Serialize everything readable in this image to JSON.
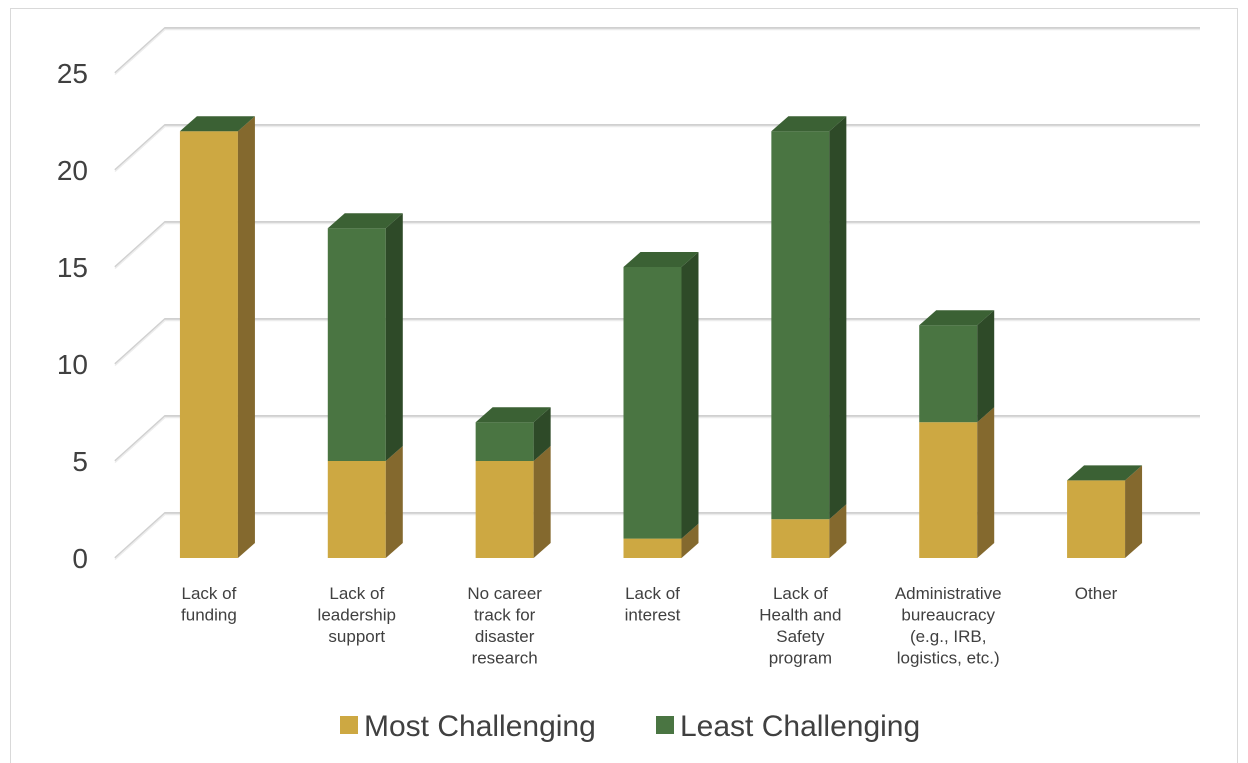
{
  "chart_data": {
    "type": "bar",
    "stacked": true,
    "three_d": true,
    "categories": [
      [
        "Lack of",
        "funding"
      ],
      [
        "Lack of",
        "leadership",
        "support"
      ],
      [
        "No career",
        "track for",
        "disaster",
        "research"
      ],
      [
        "Lack of",
        "interest"
      ],
      [
        "Lack of",
        "Health and",
        "Safety",
        "program"
      ],
      [
        "Administrative",
        "bureaucracy",
        "(e.g., IRB,",
        "logistics, etc.)"
      ],
      [
        "Other"
      ]
    ],
    "series": [
      {
        "name": "Most Challenging",
        "values": [
          22,
          5,
          5,
          1,
          2,
          7,
          4
        ],
        "color": "#cda842",
        "side_color": "#84692e"
      },
      {
        "name": "Least Challenging",
        "values": [
          0,
          12,
          2,
          14,
          20,
          5,
          0
        ],
        "color": "#4a7542",
        "side_color": "#2e4a28",
        "top_color": "#3b6134"
      }
    ],
    "yticks": [
      0,
      5,
      10,
      15,
      20,
      25
    ],
    "ylim": [
      0,
      25
    ],
    "grid": true,
    "legend_position": "bottom"
  }
}
